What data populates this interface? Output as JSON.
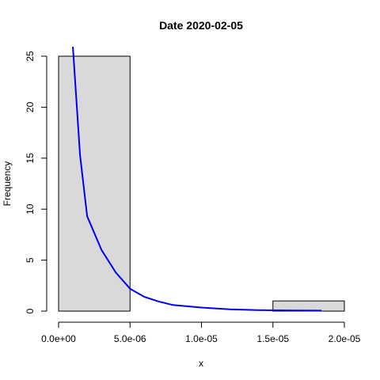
{
  "chart_data": {
    "type": "bar",
    "title": "Date 2020-02-05",
    "xlabel": "x",
    "ylabel": "Frequency",
    "xlim": [
      0,
      2e-05
    ],
    "ylim": [
      0,
      25
    ],
    "x_ticks": [
      0,
      5e-06,
      1e-05,
      1.5e-05,
      2e-05
    ],
    "x_tick_labels": [
      "0.0e+00",
      "5.0e-06",
      "1.0e-05",
      "1.5e-05",
      "2.0e-05"
    ],
    "y_ticks": [
      0,
      5,
      10,
      15,
      20,
      25
    ],
    "y_tick_labels": [
      "0",
      "5",
      "10",
      "15",
      "20",
      "25"
    ],
    "bins": [
      {
        "start": 0,
        "end": 5e-06,
        "count": 25
      },
      {
        "start": 5e-06,
        "end": 1e-05,
        "count": 0
      },
      {
        "start": 1e-05,
        "end": 1.5e-05,
        "count": 0
      },
      {
        "start": 1.5e-05,
        "end": 2e-05,
        "count": 1
      }
    ],
    "density_curve": {
      "x": [
        1e-06,
        1.5e-06,
        2e-06,
        3e-06,
        4e-06,
        5e-06,
        6e-06,
        7e-06,
        8e-06,
        1e-05,
        1.2e-05,
        1.4e-05,
        1.6e-05,
        1.84e-05
      ],
      "y": [
        26,
        15.3,
        9.3,
        6,
        3.8,
        2.2,
        1.4,
        0.95,
        0.6,
        0.35,
        0.18,
        0.1,
        0.07,
        0.05
      ]
    },
    "colors": {
      "bar_fill": "#d9d9d9",
      "bar_stroke": "#000000",
      "curve": "#0000ee"
    }
  }
}
